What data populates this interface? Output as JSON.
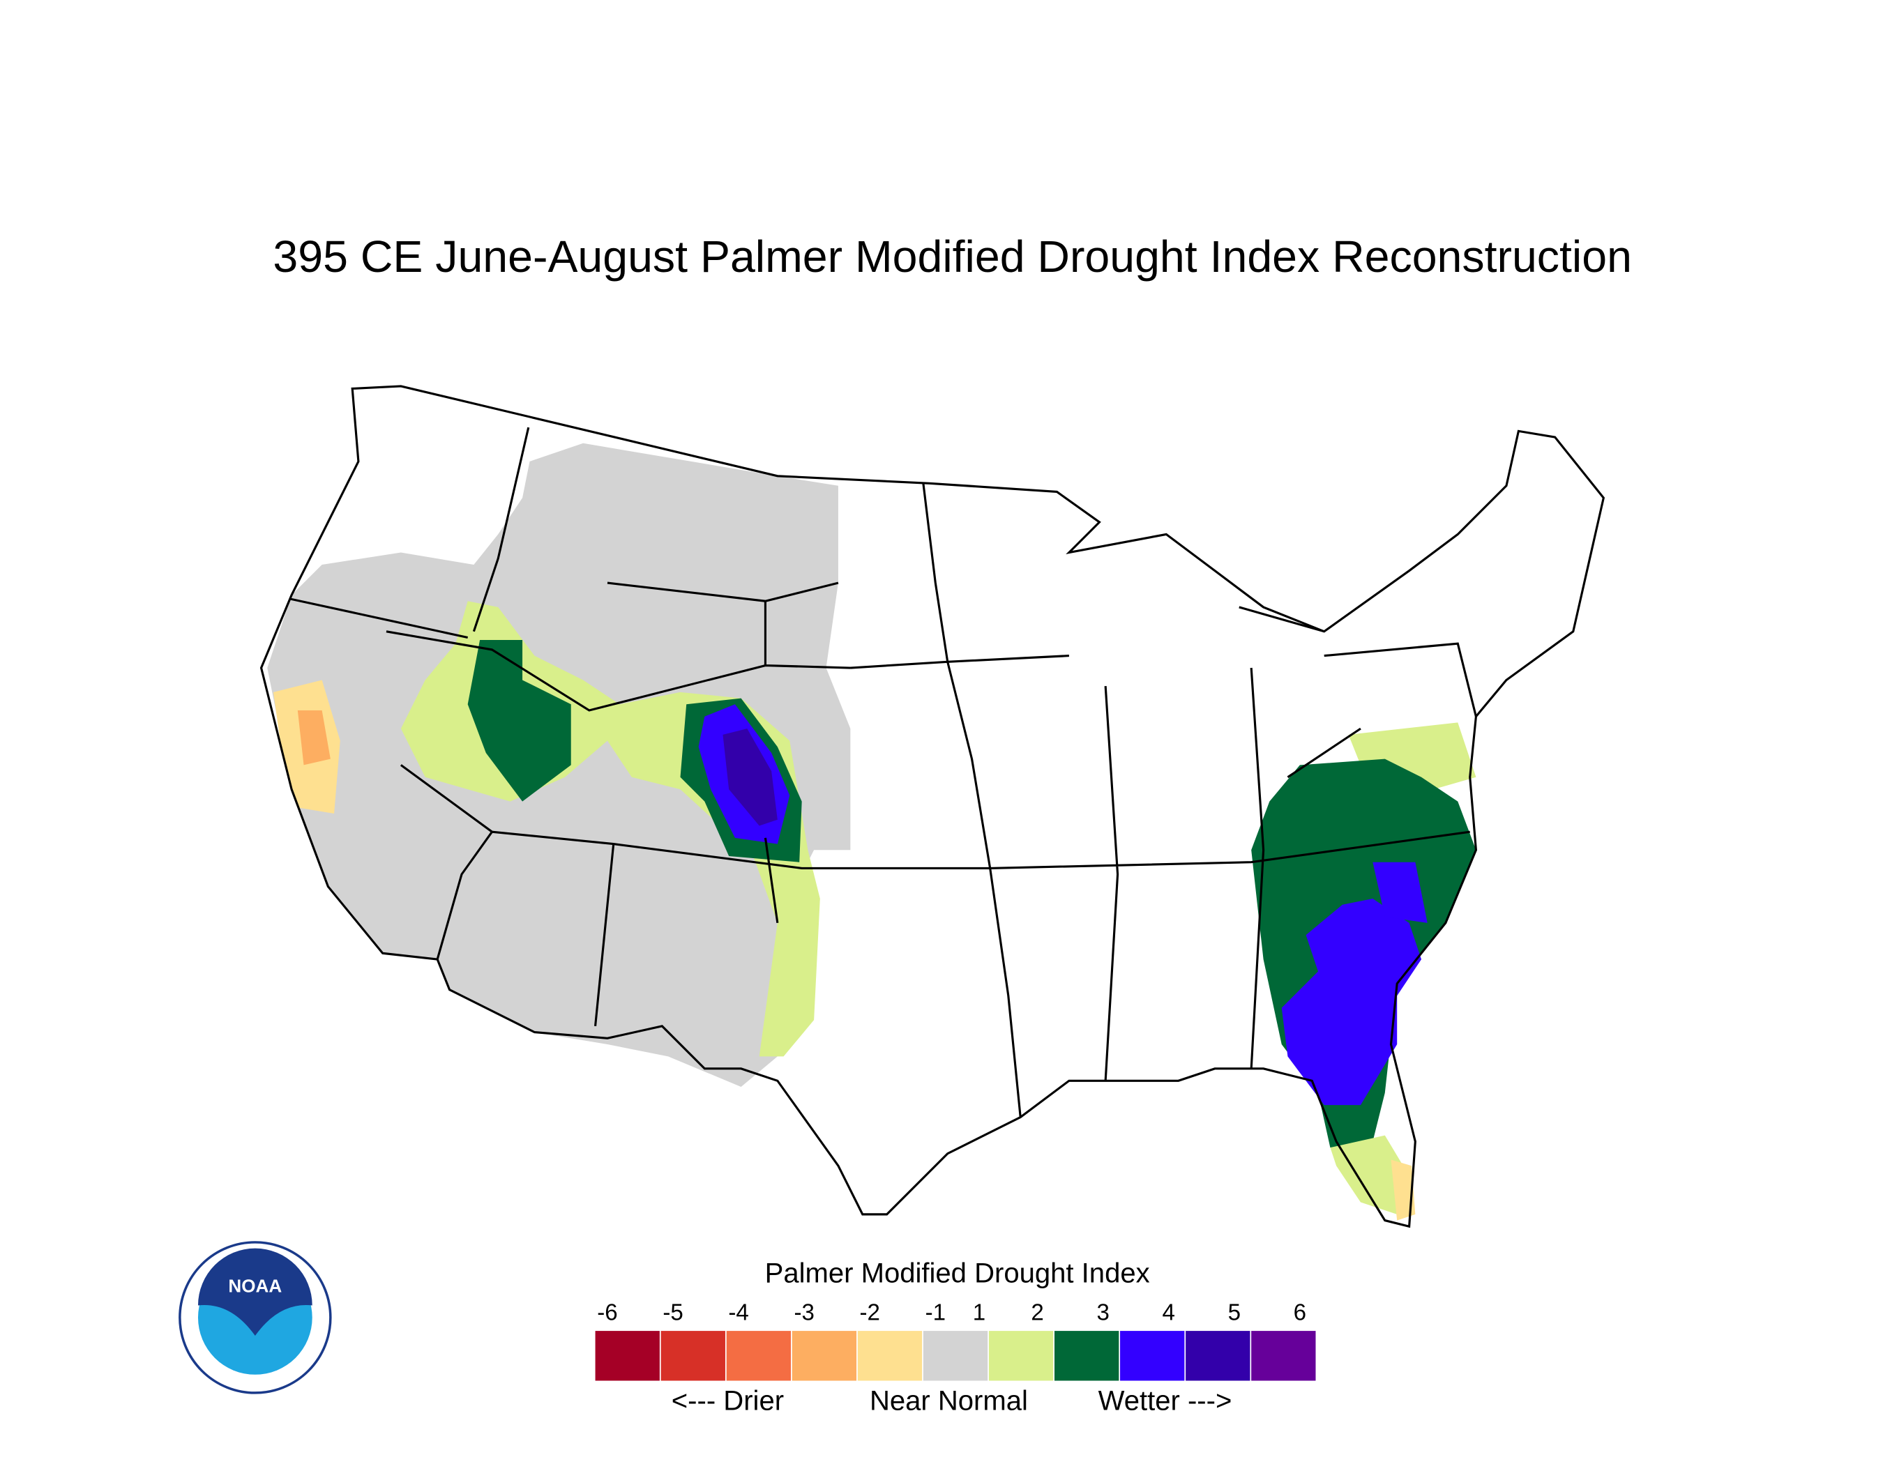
{
  "title": "395 CE  June-August  Palmer Modified Drought Index Reconstruction",
  "legend": {
    "title": "Palmer Modified Drought Index",
    "ticks": [
      -6,
      -5,
      -4,
      -3,
      -2,
      -1,
      1,
      2,
      3,
      4,
      5,
      6
    ],
    "colors": [
      "#a50026",
      "#d73027",
      "#f46d43",
      "#fdae61",
      "#fee090",
      "#d3d3d3",
      "#d9ef8b",
      "#006837",
      "#3300ff",
      "#3300aa",
      "#66009a"
    ],
    "labels": [
      "<--- Drier",
      "Near Normal",
      "Wetter --->"
    ]
  },
  "logo": {
    "text": "NOAA"
  }
}
